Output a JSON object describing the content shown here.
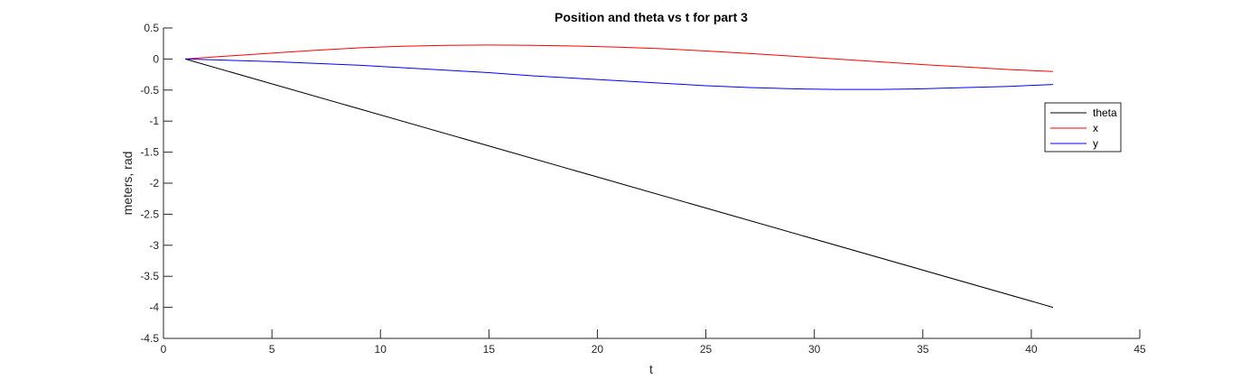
{
  "chart_data": {
    "type": "line",
    "title": "Position and theta vs t for part 3",
    "xlabel": "t",
    "ylabel": "meters, rad",
    "xlim": [
      0,
      45
    ],
    "ylim": [
      -4.5,
      0.5
    ],
    "xticks": [
      0,
      5,
      10,
      15,
      20,
      25,
      30,
      35,
      40,
      45
    ],
    "yticks": [
      0.5,
      0,
      -0.5,
      -1,
      -1.5,
      -2,
      -2.5,
      -3,
      -3.5,
      -4,
      -4.5
    ],
    "grid": false,
    "legend_position": "right",
    "series": [
      {
        "name": "theta",
        "color": "#000000",
        "x": [
          1,
          41
        ],
        "y": [
          0,
          -4.0
        ]
      },
      {
        "name": "x",
        "color": "#ff0000",
        "x": [
          1,
          3,
          5,
          7,
          9,
          11,
          13,
          15,
          17,
          19,
          21,
          23,
          25,
          27,
          29,
          31,
          33,
          35,
          37,
          39,
          41
        ],
        "y": [
          0,
          0.05,
          0.095,
          0.14,
          0.18,
          0.205,
          0.22,
          0.225,
          0.22,
          0.21,
          0.19,
          0.165,
          0.13,
          0.09,
          0.045,
          0.0,
          -0.045,
          -0.09,
          -0.13,
          -0.17,
          -0.2
        ]
      },
      {
        "name": "y",
        "color": "#0000ff",
        "x": [
          1,
          3,
          5,
          7,
          9,
          11,
          13,
          15,
          17,
          19,
          21,
          23,
          25,
          27,
          29,
          31,
          33,
          35,
          37,
          39,
          41
        ],
        "y": [
          0,
          -0.02,
          -0.04,
          -0.07,
          -0.1,
          -0.14,
          -0.18,
          -0.22,
          -0.27,
          -0.31,
          -0.35,
          -0.39,
          -0.43,
          -0.46,
          -0.48,
          -0.49,
          -0.49,
          -0.48,
          -0.46,
          -0.44,
          -0.41
        ]
      }
    ]
  }
}
